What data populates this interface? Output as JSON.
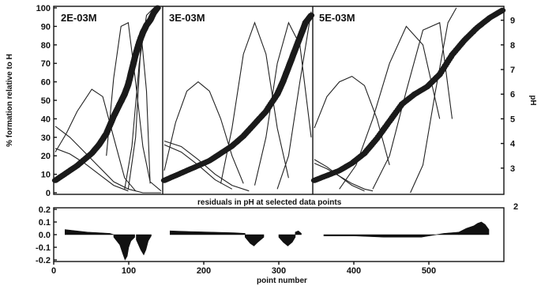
{
  "chart_data": [
    {
      "type": "line",
      "title": "",
      "panels": [
        "2E-03M",
        "3E-03M",
        "5E-03M"
      ],
      "ylabel_left": "% formation relative to H",
      "ylabel_right": "pH",
      "ylim_left": [
        0,
        100
      ],
      "ylim_right": [
        2,
        9.5
      ],
      "left_ticks": [
        "0",
        "10",
        "20",
        "30",
        "40",
        "50",
        "60",
        "70",
        "80",
        "90",
        "100"
      ],
      "right_ticks": [
        "3",
        "4",
        "5",
        "6",
        "7",
        "8",
        "9"
      ],
      "species_curves": [
        {
          "panel": 0,
          "x": [
            0,
            20,
            40,
            60,
            80,
            100,
            120,
            145
          ],
          "y": [
            36,
            30,
            22,
            14,
            6,
            2,
            0,
            0
          ]
        },
        {
          "panel": 0,
          "x": [
            0,
            20,
            40,
            60,
            80,
            100
          ],
          "y": [
            24,
            21,
            16,
            10,
            4,
            1
          ]
        },
        {
          "panel": 0,
          "x": [
            0,
            15,
            30,
            50,
            65,
            80,
            95,
            110
          ],
          "y": [
            22,
            32,
            44,
            56,
            52,
            30,
            8,
            1
          ]
        },
        {
          "panel": 0,
          "x": [
            70,
            80,
            90,
            100,
            110,
            120,
            130,
            145
          ],
          "y": [
            20,
            62,
            90,
            92,
            60,
            25,
            6,
            1
          ]
        },
        {
          "panel": 0,
          "x": [
            95,
            105,
            115,
            125,
            135,
            145
          ],
          "y": [
            2,
            25,
            70,
            96,
            100,
            100
          ]
        },
        {
          "panel": 0,
          "x": [
            100,
            110,
            118,
            125,
            130
          ],
          "y": [
            2,
            30,
            85,
            55,
            5
          ]
        },
        {
          "panel": 1,
          "x": [
            0,
            30,
            60,
            90,
            120,
            150
          ],
          "y": [
            28,
            25,
            18,
            10,
            4,
            1
          ]
        },
        {
          "panel": 1,
          "x": [
            0,
            30,
            60,
            90,
            120
          ],
          "y": [
            26,
            22,
            15,
            7,
            2
          ]
        },
        {
          "panel": 1,
          "x": [
            0,
            20,
            40,
            60,
            80,
            100,
            120,
            140
          ],
          "y": [
            12,
            38,
            55,
            60,
            55,
            40,
            20,
            5
          ]
        },
        {
          "panel": 1,
          "x": [
            100,
            120,
            140,
            160,
            180,
            200,
            220
          ],
          "y": [
            5,
            35,
            75,
            92,
            75,
            35,
            8
          ]
        },
        {
          "panel": 1,
          "x": [
            160,
            180,
            200,
            220,
            240,
            260
          ],
          "y": [
            4,
            30,
            70,
            92,
            80,
            30
          ]
        },
        {
          "panel": 1,
          "x": [
            200,
            220,
            240,
            260
          ],
          "y": [
            2,
            20,
            60,
            98
          ]
        },
        {
          "panel": 2,
          "x": [
            0,
            30,
            60,
            90,
            120
          ],
          "y": [
            18,
            14,
            9,
            4,
            1
          ]
        },
        {
          "panel": 2,
          "x": [
            0,
            30,
            60,
            90,
            120,
            140
          ],
          "y": [
            16,
            13,
            9,
            5,
            2,
            1
          ]
        },
        {
          "panel": 2,
          "x": [
            0,
            30,
            60,
            90,
            120,
            150,
            180
          ],
          "y": [
            35,
            52,
            60,
            63,
            58,
            40,
            15
          ]
        },
        {
          "panel": 2,
          "x": [
            60,
            100,
            140,
            180,
            220,
            260,
            300
          ],
          "y": [
            2,
            15,
            40,
            70,
            90,
            80,
            40
          ]
        },
        {
          "panel": 2,
          "x": [
            140,
            180,
            220,
            260,
            300,
            330
          ],
          "y": [
            2,
            20,
            55,
            88,
            92,
            40
          ]
        },
        {
          "panel": 2,
          "x": [
            230,
            260,
            290,
            320,
            340
          ],
          "y": [
            0,
            15,
            55,
            92,
            100
          ]
        }
      ],
      "ph_series": [
        {
          "panel": 0,
          "x": [
            0,
            10,
            20,
            30,
            40,
            50,
            60,
            70,
            80,
            90,
            95,
            100,
            105,
            110,
            115,
            120,
            125,
            130,
            135,
            140
          ],
          "y": [
            2.5,
            2.7,
            2.9,
            3.1,
            3.35,
            3.6,
            3.95,
            4.4,
            5.1,
            5.7,
            6,
            6.4,
            7,
            7.6,
            8.1,
            8.5,
            8.8,
            9,
            9.3,
            9.5
          ]
        },
        {
          "panel": 1,
          "x": [
            0,
            20,
            40,
            60,
            80,
            100,
            120,
            140,
            160,
            180,
            200,
            210,
            220,
            230,
            240,
            250,
            260
          ],
          "y": [
            2.5,
            2.7,
            2.9,
            3.1,
            3.3,
            3.6,
            3.9,
            4.3,
            4.8,
            5.3,
            6,
            6.5,
            7.1,
            7.7,
            8.3,
            8.9,
            9.2
          ]
        },
        {
          "panel": 2,
          "x": [
            0,
            30,
            60,
            90,
            120,
            150,
            180,
            210,
            240,
            270,
            300,
            330,
            360,
            390,
            420,
            450
          ],
          "y": [
            2.5,
            2.7,
            2.9,
            3.2,
            3.6,
            4.2,
            4.9,
            5.6,
            6,
            6.3,
            6.8,
            7.6,
            8.2,
            8.7,
            9.1,
            9.4
          ]
        }
      ],
      "residual_title": "residuals in pH at selected data points",
      "xlabel": "point number",
      "x_ticks": [
        "0",
        "100",
        "200",
        "300",
        "400",
        "500"
      ],
      "resid_ticks": [
        "0.2",
        "0.1",
        "0.0",
        "-0.1",
        "-0.2"
      ],
      "resid_right_label": "2",
      "ylim_resid": [
        -0.2,
        0.2
      ],
      "xlim": [
        0,
        600
      ],
      "residuals": [
        {
          "x": [
            15,
            30,
            45,
            60,
            75,
            80
          ],
          "y": [
            0.04,
            0.03,
            0.02,
            0.015,
            0.01,
            0
          ]
        },
        {
          "x": [
            80,
            88,
            92,
            95,
            98,
            100,
            103,
            108
          ],
          "y": [
            -0.02,
            -0.08,
            -0.15,
            -0.2,
            -0.17,
            -0.1,
            -0.05,
            -0.02
          ]
        },
        {
          "x": [
            110,
            116,
            120,
            123,
            126,
            130
          ],
          "y": [
            -0.04,
            -0.12,
            -0.16,
            -0.12,
            -0.05,
            -0.01
          ]
        },
        {
          "x": [
            155,
            180,
            210,
            240,
            255
          ],
          "y": [
            0.03,
            0.025,
            0.02,
            0.015,
            0.01
          ]
        },
        {
          "x": [
            255,
            262,
            267,
            272,
            280
          ],
          "y": [
            -0.02,
            -0.07,
            -0.09,
            -0.06,
            -0.02
          ]
        },
        {
          "x": [
            300,
            306,
            312,
            318,
            322
          ],
          "y": [
            -0.02,
            -0.06,
            -0.09,
            -0.06,
            -0.02
          ]
        },
        {
          "x": [
            322,
            326,
            330
          ],
          "y": [
            0.02,
            0.03,
            0.01
          ]
        },
        {
          "x": [
            360,
            400,
            440,
            470,
            490,
            520,
            540
          ],
          "y": [
            -0.01,
            -0.01,
            -0.02,
            -0.02,
            -0.02,
            0.01,
            0.02
          ]
        },
        {
          "x": [
            540,
            550,
            560,
            565,
            570,
            575,
            580
          ],
          "y": [
            0.02,
            0.05,
            0.07,
            0.09,
            0.1,
            0.08,
            0.04
          ]
        }
      ]
    }
  ]
}
